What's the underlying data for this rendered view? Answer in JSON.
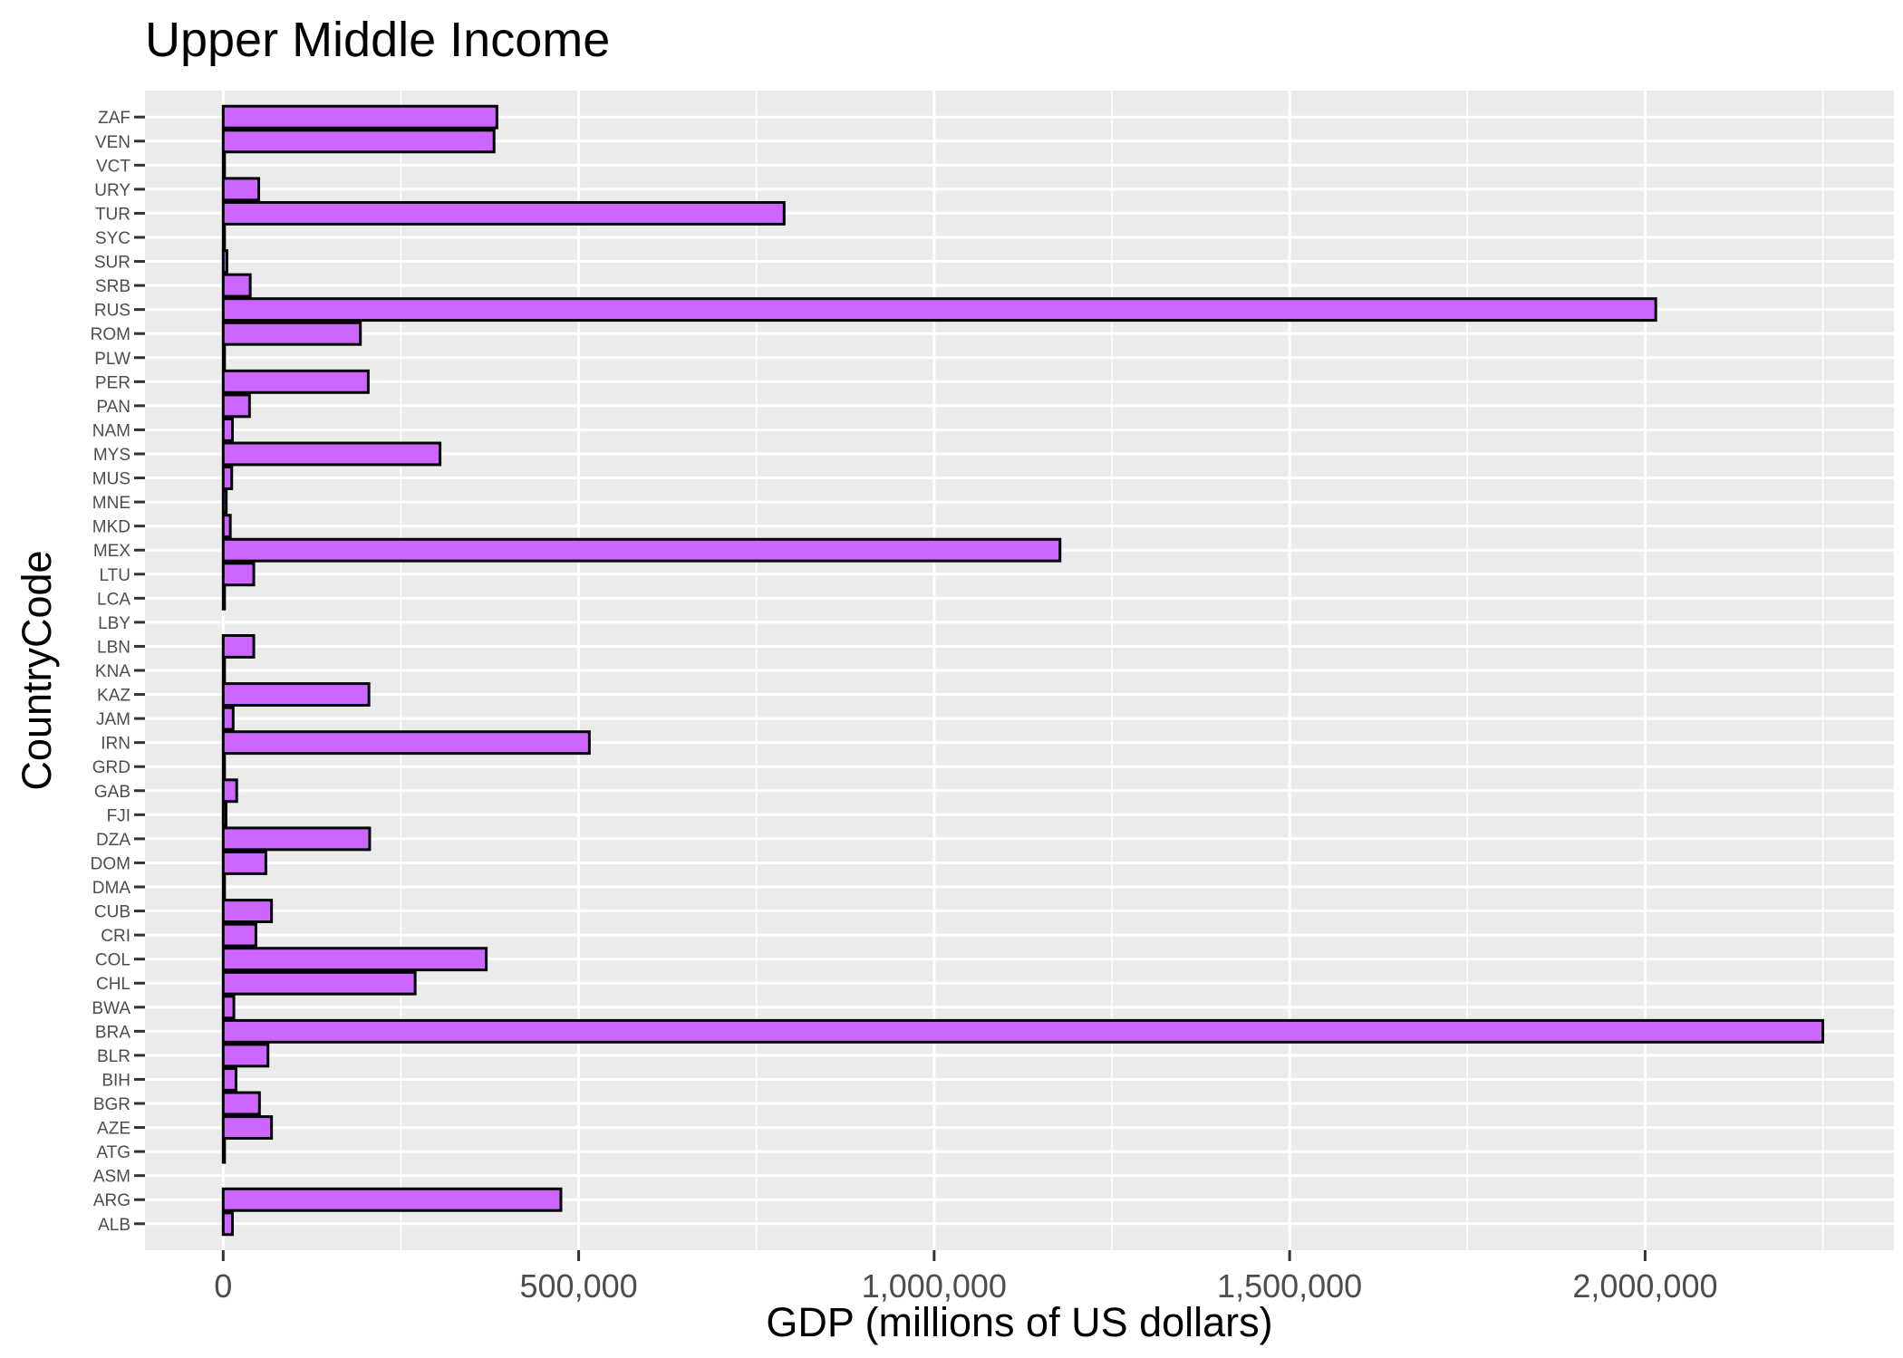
{
  "chart_data": {
    "type": "bar",
    "orientation": "horizontal",
    "title": "Upper Middle Income",
    "xlabel": "GDP (millions of US dollars)",
    "ylabel": "CountryCode",
    "xlim": [
      -110000,
      2350000
    ],
    "x_ticks": [
      0,
      500000,
      1000000,
      1500000,
      2000000
    ],
    "x_tick_labels": [
      "0",
      "500,000",
      "1,000,000",
      "1,500,000",
      "2,000,000"
    ],
    "grid": true,
    "legend": "none",
    "bar_fill": "#cc66ff",
    "bar_stroke": "#000000",
    "panel_background": "#ebebeb",
    "categories": [
      "ALB",
      "ARG",
      "ASM",
      "ATG",
      "AZE",
      "BGR",
      "BIH",
      "BLR",
      "BRA",
      "BWA",
      "CHL",
      "COL",
      "CRI",
      "CUB",
      "DMA",
      "DOM",
      "DZA",
      "FJI",
      "GAB",
      "GRD",
      "IRN",
      "JAM",
      "KAZ",
      "KNA",
      "LBN",
      "LBY",
      "LCA",
      "LTU",
      "MEX",
      "MKD",
      "MNE",
      "MUS",
      "MYS",
      "NAM",
      "PAN",
      "PER",
      "PLW",
      "ROM",
      "RUS",
      "SRB",
      "SUR",
      "SYC",
      "TUR",
      "URY",
      "VCT",
      "VEN",
      "ZAF"
    ],
    "values": [
      13000,
      475000,
      null,
      1200,
      68000,
      51000,
      18000,
      63000,
      2250000,
      15000,
      270000,
      370000,
      46000,
      68000,
      500,
      60000,
      206000,
      4000,
      19000,
      800,
      515000,
      14000,
      205000,
      800,
      43000,
      null,
      1400,
      43000,
      1177000,
      10000,
      4300,
      12000,
      305000,
      13000,
      37000,
      204000,
      250,
      193000,
      2015000,
      38000,
      5200,
      1500,
      789000,
      50000,
      700,
      381000,
      385000
    ]
  }
}
